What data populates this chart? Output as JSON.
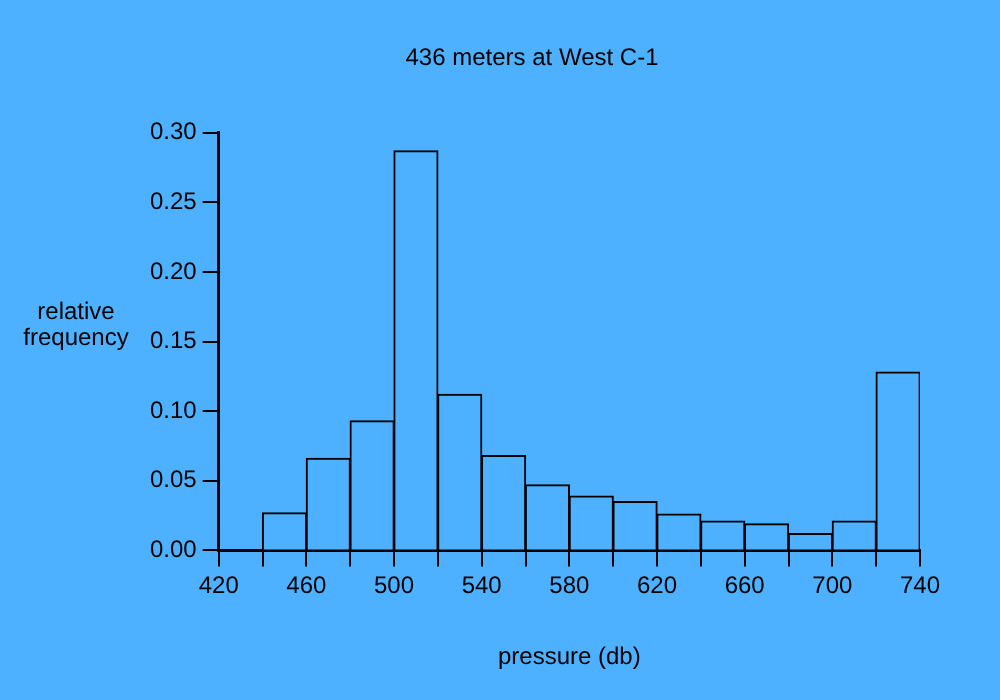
{
  "chart_data": {
    "type": "histogram",
    "title": "436 meters at West C-1",
    "xlabel": "pressure (db)",
    "ylabel": "relative frequency",
    "bins": [
      440,
      460,
      480,
      500,
      520,
      540,
      560,
      580,
      600,
      620,
      640,
      660,
      680,
      700,
      720,
      740
    ],
    "values": [
      0.027,
      0.066,
      0.093,
      0.287,
      0.112,
      0.068,
      0.047,
      0.039,
      0.035,
      0.026,
      0.021,
      0.019,
      0.012,
      0.021,
      0.128
    ],
    "color": "#4db1ff",
    "xlim": [
      420,
      740
    ],
    "xticks": [
      420,
      {
        "value": 440,
        "label": null
      },
      460,
      {
        "value": 480,
        "label": null
      },
      500,
      {
        "value": 520,
        "label": null
      },
      540,
      {
        "value": 560,
        "label": null
      },
      580,
      {
        "value": 600,
        "label": null
      },
      620,
      {
        "value": 640,
        "label": null
      },
      660,
      {
        "value": 680,
        "label": null
      },
      700,
      {
        "value": 720,
        "label": null
      },
      740
    ],
    "ylim": [
      0,
      0.3
    ],
    "yticks": [
      {
        "value": 0,
        "label": "0.00"
      },
      {
        "value": 0.05,
        "label": "0.05"
      },
      {
        "value": 0.1,
        "label": "0.10"
      },
      {
        "value": 0.15,
        "label": "0.15"
      },
      {
        "value": 0.2,
        "label": "0.20"
      },
      {
        "value": 0.25,
        "label": "0.25"
      },
      {
        "value": 0.3,
        "label": "0.30"
      }
    ],
    "grid": false,
    "legend": false
  }
}
